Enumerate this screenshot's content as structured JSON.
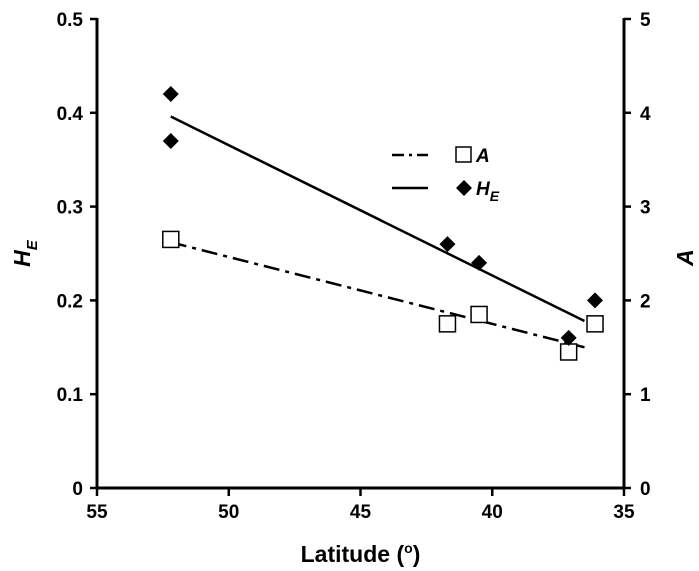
{
  "chart_data": {
    "type": "scatter",
    "title": "",
    "xlabel": {
      "main": "Latitude (",
      "sup": "o",
      "close": ")"
    },
    "x_range": [
      55,
      35
    ],
    "x_reversed": true,
    "x_ticks": [
      "55",
      "50",
      "45",
      "40",
      "35"
    ],
    "y_left": {
      "label_main": "H",
      "label_sub": "E",
      "range": [
        0,
        0.5
      ],
      "ticks": [
        "0",
        "0.1",
        "0.2",
        "0.3",
        "0.4",
        "0.5"
      ]
    },
    "y_right": {
      "label": "A",
      "range": [
        0,
        5
      ],
      "ticks": [
        "0",
        "1",
        "2",
        "3",
        "4",
        "5"
      ]
    },
    "grid": false,
    "legend_position": "upper-right inside plot",
    "series": [
      {
        "name": "A",
        "axis": "right",
        "marker": "open-square",
        "line_style": "dash-dot",
        "points": [
          [
            52.2,
            2.65
          ],
          [
            41.7,
            1.75
          ],
          [
            40.5,
            1.85
          ],
          [
            37.1,
            1.45
          ],
          [
            36.1,
            1.75
          ]
        ],
        "trend": [
          [
            52.2,
            2.62
          ],
          [
            36.5,
            1.5
          ]
        ]
      },
      {
        "name_main": "H",
        "name_sub": "E",
        "axis": "left",
        "marker": "filled-diamond",
        "line_style": "solid",
        "points": [
          [
            52.2,
            0.42
          ],
          [
            52.2,
            0.37
          ],
          [
            41.7,
            0.26
          ],
          [
            40.5,
            0.24
          ],
          [
            37.1,
            0.16
          ],
          [
            36.1,
            0.2
          ]
        ],
        "trend": [
          [
            52.2,
            0.396
          ],
          [
            36.5,
            0.178
          ]
        ]
      }
    ],
    "colors": {
      "ink": "#000000",
      "background": "#ffffff"
    }
  }
}
